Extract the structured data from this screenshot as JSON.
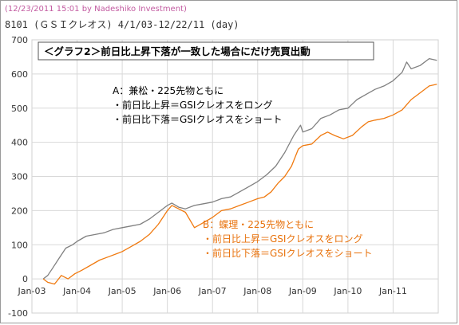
{
  "header": {
    "credit": "(12/23/2011 15:01 by Nadeshiko Investment)",
    "subtitle": "8101 (ＧＳＩクレオス) 4/1/03-12/22/11 (day)"
  },
  "chart_data": {
    "type": "line",
    "title": "＜グラフ2＞前日比上昇下落が一致した場合にだけ売買出動",
    "xlabel": "",
    "ylabel": "",
    "ylim": [
      -100,
      700
    ],
    "yticks": [
      -100,
      0,
      100,
      200,
      300,
      400,
      500,
      600,
      700
    ],
    "xlim": [
      "2003-01",
      "2012-01"
    ],
    "xticks": [
      "Jan-03",
      "Jan-04",
      "Jan-05",
      "Jan-06",
      "Jan-07",
      "Jan-08",
      "Jan-09",
      "Jan-10",
      "Jan-11"
    ],
    "grid": true,
    "annotations": {
      "a": {
        "line1": "A：兼松・225先物ともに",
        "line2": "・前日比上昇＝GSIクレオスをロング",
        "line3": "・前日比下落＝GSIクレオスをショート"
      },
      "b": {
        "line1": "B：蝶理・225先物ともに",
        "line2": "・前日比上昇＝GSIクレオスをロング",
        "line3": "・前日比下落＝GSIクレオスをショート"
      }
    },
    "series": [
      {
        "key": "A",
        "color": "#808080",
        "points": [
          [
            2003.25,
            0
          ],
          [
            2003.35,
            10
          ],
          [
            2003.45,
            30
          ],
          [
            2003.6,
            60
          ],
          [
            2003.75,
            90
          ],
          [
            2003.9,
            100
          ],
          [
            2004.0,
            110
          ],
          [
            2004.2,
            125
          ],
          [
            2004.4,
            130
          ],
          [
            2004.6,
            135
          ],
          [
            2004.8,
            145
          ],
          [
            2005.0,
            150
          ],
          [
            2005.2,
            155
          ],
          [
            2005.4,
            160
          ],
          [
            2005.6,
            175
          ],
          [
            2005.8,
            195
          ],
          [
            2006.0,
            215
          ],
          [
            2006.1,
            222
          ],
          [
            2006.25,
            210
          ],
          [
            2006.4,
            205
          ],
          [
            2006.6,
            215
          ],
          [
            2006.8,
            220
          ],
          [
            2007.0,
            225
          ],
          [
            2007.2,
            235
          ],
          [
            2007.4,
            240
          ],
          [
            2007.6,
            255
          ],
          [
            2007.8,
            270
          ],
          [
            2008.0,
            285
          ],
          [
            2008.2,
            305
          ],
          [
            2008.4,
            330
          ],
          [
            2008.6,
            370
          ],
          [
            2008.8,
            420
          ],
          [
            2008.95,
            450
          ],
          [
            2009.0,
            430
          ],
          [
            2009.2,
            440
          ],
          [
            2009.4,
            470
          ],
          [
            2009.6,
            480
          ],
          [
            2009.8,
            495
          ],
          [
            2010.0,
            500
          ],
          [
            2010.2,
            525
          ],
          [
            2010.4,
            540
          ],
          [
            2010.6,
            555
          ],
          [
            2010.8,
            565
          ],
          [
            2011.0,
            580
          ],
          [
            2011.2,
            605
          ],
          [
            2011.3,
            635
          ],
          [
            2011.4,
            615
          ],
          [
            2011.6,
            625
          ],
          [
            2011.8,
            645
          ],
          [
            2011.97,
            640
          ]
        ]
      },
      {
        "key": "B",
        "color": "#f07a10",
        "points": [
          [
            2003.25,
            0
          ],
          [
            2003.35,
            -10
          ],
          [
            2003.5,
            -15
          ],
          [
            2003.65,
            10
          ],
          [
            2003.8,
            0
          ],
          [
            2003.95,
            15
          ],
          [
            2004.1,
            25
          ],
          [
            2004.3,
            40
          ],
          [
            2004.5,
            55
          ],
          [
            2004.7,
            65
          ],
          [
            2004.9,
            75
          ],
          [
            2005.0,
            80
          ],
          [
            2005.2,
            95
          ],
          [
            2005.4,
            110
          ],
          [
            2005.6,
            130
          ],
          [
            2005.8,
            160
          ],
          [
            2006.0,
            200
          ],
          [
            2006.1,
            215
          ],
          [
            2006.25,
            205
          ],
          [
            2006.4,
            195
          ],
          [
            2006.6,
            150
          ],
          [
            2006.8,
            165
          ],
          [
            2007.0,
            180
          ],
          [
            2007.2,
            200
          ],
          [
            2007.4,
            205
          ],
          [
            2007.6,
            215
          ],
          [
            2007.8,
            225
          ],
          [
            2008.0,
            235
          ],
          [
            2008.15,
            240
          ],
          [
            2008.3,
            255
          ],
          [
            2008.45,
            280
          ],
          [
            2008.6,
            300
          ],
          [
            2008.75,
            330
          ],
          [
            2008.9,
            380
          ],
          [
            2009.0,
            390
          ],
          [
            2009.2,
            395
          ],
          [
            2009.4,
            420
          ],
          [
            2009.55,
            430
          ],
          [
            2009.7,
            420
          ],
          [
            2009.9,
            410
          ],
          [
            2010.1,
            420
          ],
          [
            2010.3,
            445
          ],
          [
            2010.45,
            460
          ],
          [
            2010.6,
            465
          ],
          [
            2010.8,
            470
          ],
          [
            2011.0,
            480
          ],
          [
            2011.2,
            495
          ],
          [
            2011.4,
            525
          ],
          [
            2011.6,
            545
          ],
          [
            2011.8,
            565
          ],
          [
            2011.97,
            570
          ]
        ]
      }
    ]
  }
}
